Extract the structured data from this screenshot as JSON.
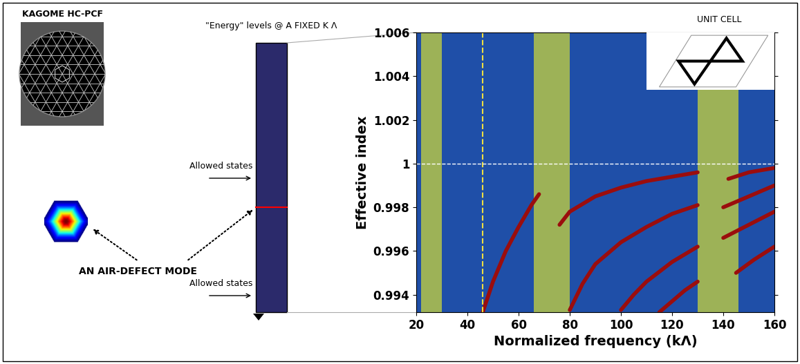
{
  "fiber": {
    "title": "KAGOME HC-PCF"
  },
  "levels": {
    "title": "\"Energy\" levels @ A FIXED K Λ",
    "allowed_upper": "Allowed states",
    "allowed_lower": "Allowed states",
    "mode_label": "AN AIR-DEFECT MODE"
  },
  "unit_cell": {
    "title": "UNIT CELL"
  },
  "chart_data": {
    "type": "line",
    "xlabel": "Normalized frequency (kΛ)",
    "ylabel": "Effective index",
    "xlim": [
      20,
      160
    ],
    "xticks": [
      20,
      40,
      60,
      80,
      100,
      120,
      140,
      160
    ],
    "ylim": [
      0.9932,
      1.006
    ],
    "yticks": [
      0.994,
      0.996,
      0.998,
      1,
      1.002,
      1.004,
      1.006
    ],
    "grid": false,
    "bands": [
      [
        22,
        30
      ],
      [
        66,
        80
      ],
      [
        130,
        146
      ]
    ],
    "band_color": "#c9d43c",
    "vline": 46,
    "hline": 1,
    "series": [
      {
        "color": "#9b0d0d",
        "x": [
          46,
          50,
          55,
          60,
          65,
          68
        ],
        "values": [
          0.9932,
          0.9946,
          0.996,
          0.9971,
          0.9981,
          0.9986
        ]
      },
      {
        "color": "#9b0d0d",
        "x": [
          76,
          80,
          90,
          100,
          110,
          120,
          130
        ],
        "values": [
          0.9972,
          0.9978,
          0.9985,
          0.9989,
          0.9992,
          0.9994,
          0.9996
        ]
      },
      {
        "color": "#9b0d0d",
        "x": [
          80,
          85,
          90,
          100,
          110,
          120,
          130
        ],
        "values": [
          0.9933,
          0.9945,
          0.9954,
          0.9964,
          0.9971,
          0.9977,
          0.9981
        ]
      },
      {
        "color": "#9b0d0d",
        "x": [
          100,
          105,
          110,
          120,
          130
        ],
        "values": [
          0.9933,
          0.994,
          0.9946,
          0.9955,
          0.9962
        ]
      },
      {
        "color": "#9b0d0d",
        "x": [
          115,
          120,
          125,
          130
        ],
        "values": [
          0.9932,
          0.9937,
          0.9942,
          0.9946
        ]
      },
      {
        "color": "#9b0d0d",
        "x": [
          142,
          150,
          160
        ],
        "values": [
          0.9993,
          0.9996,
          0.9998
        ]
      },
      {
        "color": "#9b0d0d",
        "x": [
          140,
          150,
          160
        ],
        "values": [
          0.998,
          0.9985,
          0.999
        ]
      },
      {
        "color": "#9b0d0d",
        "x": [
          140,
          150,
          160
        ],
        "values": [
          0.9966,
          0.9972,
          0.9978
        ]
      },
      {
        "color": "#9b0d0d",
        "x": [
          145,
          152,
          160
        ],
        "values": [
          0.995,
          0.9956,
          0.9962
        ]
      }
    ]
  }
}
